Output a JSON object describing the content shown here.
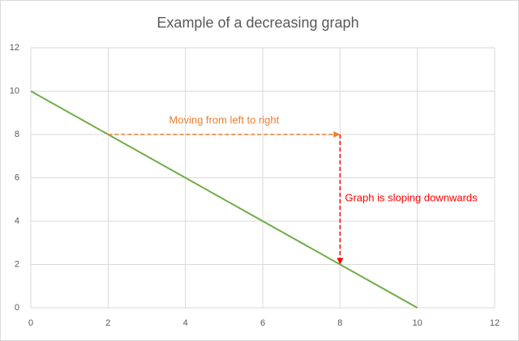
{
  "chart_data": {
    "type": "line",
    "title": "Example of a decreasing graph",
    "x": [
      0,
      2,
      4,
      6,
      8,
      10
    ],
    "values": [
      10,
      8,
      6,
      4,
      2,
      0
    ],
    "color": "#70ad47",
    "xlim": [
      0,
      12
    ],
    "xticks": [
      0,
      2,
      4,
      6,
      8,
      10,
      12
    ],
    "ylim": [
      0,
      12
    ],
    "yticks": [
      0,
      2,
      4,
      6,
      8,
      10,
      12
    ],
    "grid": true,
    "annotations": [
      {
        "text": "Moving from left to right",
        "color": "#ed7d31",
        "from": [
          2,
          8
        ],
        "to": [
          8,
          8
        ]
      },
      {
        "text": "Graph is sloping downwards",
        "color": "#ff0000",
        "from": [
          8,
          8
        ],
        "to": [
          8,
          2
        ]
      }
    ]
  }
}
